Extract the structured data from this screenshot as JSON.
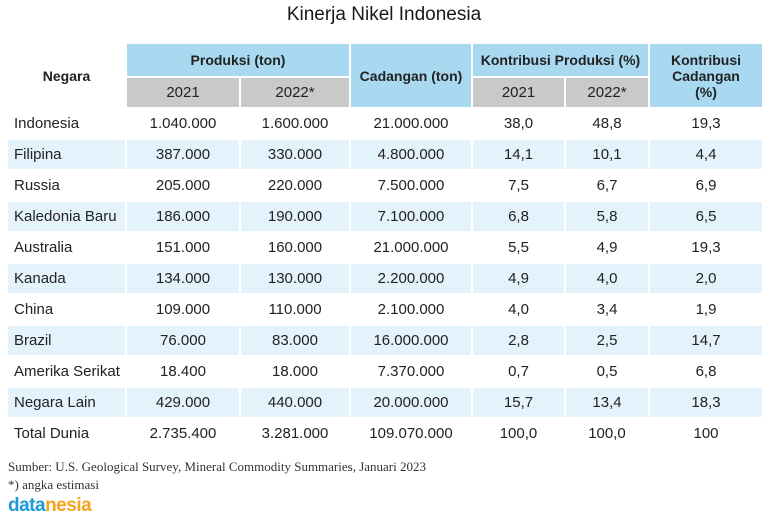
{
  "title": "Kinerja Nikel Indonesia",
  "table": {
    "header": {
      "country": "Negara",
      "production": "Produksi (ton)",
      "reserves": "Cadangan (ton)",
      "share_production": "Kontribusi Produksi (%)",
      "share_reserves": "Kontribusi Cadangan (%)",
      "years": [
        "2021",
        "2022*",
        "2021",
        "2022*"
      ]
    },
    "rows": [
      [
        "Indonesia",
        "1.040.000",
        "1.600.000",
        "21.000.000",
        "38,0",
        "48,8",
        "19,3"
      ],
      [
        "Filipina",
        "387.000",
        "330.000",
        "4.800.000",
        "14,1",
        "10,1",
        "4,4"
      ],
      [
        "Russia",
        "205.000",
        "220.000",
        "7.500.000",
        "7,5",
        "6,7",
        "6,9"
      ],
      [
        "Kaledonia Baru",
        "186.000",
        "190.000",
        "7.100.000",
        "6,8",
        "5,8",
        "6,5"
      ],
      [
        "Australia",
        "151.000",
        "160.000",
        "21.000.000",
        "5,5",
        "4,9",
        "19,3"
      ],
      [
        "Kanada",
        "134.000",
        "130.000",
        "2.200.000",
        "4,9",
        "4,0",
        "2,0"
      ],
      [
        "China",
        "109.000",
        "110.000",
        "2.100.000",
        "4,0",
        "3,4",
        "1,9"
      ],
      [
        "Brazil",
        "76.000",
        "83.000",
        "16.000.000",
        "2,8",
        "2,5",
        "14,7"
      ],
      [
        "Amerika Serikat",
        "18.400",
        "18.000",
        "7.370.000",
        "0,7",
        "0,5",
        "6,8"
      ],
      [
        "Negara Lain",
        "429.000",
        "440.000",
        "20.000.000",
        "15,7",
        "13,4",
        "18,3"
      ],
      [
        "Total Dunia",
        "2.735.400",
        "3.281.000",
        "109.070.000",
        "100,0",
        "100,0",
        "100"
      ]
    ]
  },
  "footer": {
    "source": "Sumber: U.S. Geological Survey, Mineral Commodity Summaries, Januari 2023",
    "note": "*) angka estimasi",
    "logo": [
      "data",
      "nesia"
    ]
  }
}
